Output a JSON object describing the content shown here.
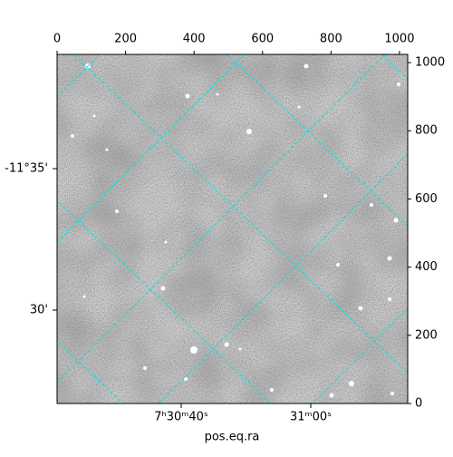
{
  "chart_data": {
    "type": "image",
    "xlabel": "pos.eq.ra",
    "xlim": [
      0,
      1024
    ],
    "ylim": [
      0,
      1024
    ],
    "xticks": [
      0,
      200,
      400,
      600,
      800,
      1000
    ],
    "yticks": [
      0,
      200,
      400,
      600,
      800,
      1000
    ],
    "ra_ticks": [
      {
        "value": 112.6667,
        "label": "7ʰ30ᵐ40ˢ"
      },
      {
        "value": 112.75,
        "label": "31ᵐ00ˢ"
      }
    ],
    "dec_ticks": [
      {
        "value": -11.5833,
        "label": "-11°35'"
      },
      {
        "value": -11.5,
        "label": "30'"
      }
    ],
    "grid_color": "#00e5e5"
  }
}
